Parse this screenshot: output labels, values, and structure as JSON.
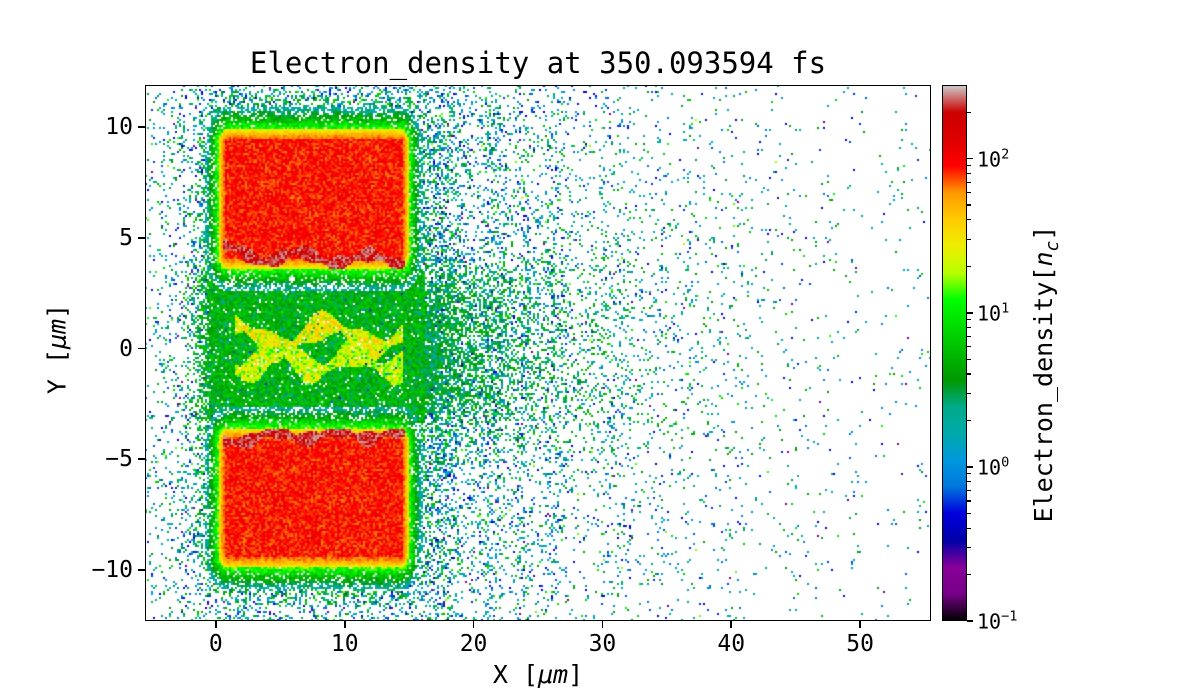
{
  "figure": {
    "background": "#ffffff"
  },
  "chart_data": {
    "type": "heatmap",
    "title": "Electron_density at 350.093594 fs",
    "xlabel": {
      "prefix": "X [",
      "unit": "μm",
      "suffix": "]"
    },
    "ylabel": {
      "prefix": "Y [",
      "unit": "μm",
      "suffix": "]"
    },
    "xlim": [
      -5.5,
      55.5
    ],
    "ylim": [
      -12.3,
      11.9
    ],
    "xticks": [
      0,
      10,
      20,
      30,
      40,
      50
    ],
    "yticks": [
      10,
      5,
      0,
      -5,
      -10
    ],
    "grid": false,
    "legend": "none",
    "colorbar": {
      "label": {
        "prefix": "Electron_density[",
        "var": "n",
        "sub": "c",
        "suffix": "]"
      },
      "scale": "log",
      "vmin": 0.1,
      "vmax": 300,
      "ticks": [
        {
          "value": 100,
          "base": "10",
          "exp": "2"
        },
        {
          "value": 10,
          "base": "10",
          "exp": "1"
        },
        {
          "value": 1,
          "base": "10",
          "exp": "0"
        },
        {
          "value": 0.1,
          "base": "10",
          "exp": "−1"
        }
      ]
    },
    "colormap": {
      "name": "nipy_spectral",
      "stops": [
        [
          0.0,
          0,
          0,
          0
        ],
        [
          0.05,
          119,
          0,
          136
        ],
        [
          0.1,
          136,
          0,
          153
        ],
        [
          0.15,
          0,
          0,
          170
        ],
        [
          0.2,
          0,
          0,
          221
        ],
        [
          0.25,
          0,
          119,
          221
        ],
        [
          0.3,
          0,
          153,
          221
        ],
        [
          0.35,
          0,
          170,
          170
        ],
        [
          0.4,
          0,
          170,
          136
        ],
        [
          0.45,
          0,
          153,
          0
        ],
        [
          0.5,
          0,
          187,
          0
        ],
        [
          0.55,
          0,
          221,
          0
        ],
        [
          0.6,
          0,
          255,
          0
        ],
        [
          0.65,
          187,
          255,
          0
        ],
        [
          0.7,
          238,
          238,
          0
        ],
        [
          0.75,
          255,
          204,
          0
        ],
        [
          0.8,
          255,
          153,
          0
        ],
        [
          0.85,
          255,
          0,
          0
        ],
        [
          0.9,
          221,
          0,
          0
        ],
        [
          0.95,
          204,
          0,
          0
        ],
        [
          1.0,
          204,
          204,
          204
        ]
      ]
    },
    "features": {
      "description": "PIC simulation snapshot: two overdense plasma slabs (x 0-15 um, y 3.6-9.9 and -9.9 to -3.6 um) with dark-red compressed fronts on their channel-facing edges, a green/yellow plasma channel along y=0 expanding into a fading plume toward +x, surrounded by scattered low-density electron speckle",
      "slabs": [
        {
          "x0": 0.2,
          "x1": 15.0,
          "y0": 3.6,
          "y1": 9.9,
          "corner_radius": 0.7,
          "core_density": 85,
          "front_line": {
            "y_base": 4.25,
            "slope": -0.02,
            "amp": 0.26,
            "freq": 1.15,
            "phase": 0.4,
            "edge_drop": 0.35,
            "thickness": 0.26,
            "density": 200
          }
        },
        {
          "x0": 0.2,
          "x1": 15.0,
          "y0": -9.9,
          "y1": -3.6,
          "corner_radius": 0.7,
          "core_density": 85,
          "front_line": {
            "y_base": -3.95,
            "slope": 0.005,
            "amp": 0.2,
            "freq": 1.3,
            "phase": 1.9,
            "edge_drop": -0.6,
            "thickness": 0.26,
            "density": 200
          }
        }
      ],
      "halo": {
        "green_width": 1.0,
        "green_density": 14,
        "speckle_width": 1.9
      },
      "channel": {
        "x0": -0.3,
        "x1": 16.2,
        "half_width": 3.35,
        "base_density": 4.5,
        "filaments": [
          {
            "y0": 0.55,
            "amp": 0.55,
            "freq": 0.85,
            "phase": 0.5,
            "density": 26
          },
          {
            "y0": -0.6,
            "amp": 0.45,
            "freq": 1.1,
            "phase": 2.4,
            "density": 20
          }
        ]
      },
      "plume": {
        "x_start": 16.2,
        "decay_length": 5.5,
        "half_width": 3.2,
        "widen_rate": 0.12,
        "density": 3.2
      },
      "noise": {
        "near_density": 0.33,
        "left_decay": 3.0,
        "fan_decay": 9.5,
        "floor": 0.006,
        "stripe_amp": 0.33,
        "fan_boost": 0.1,
        "seed": 1337
      }
    }
  }
}
